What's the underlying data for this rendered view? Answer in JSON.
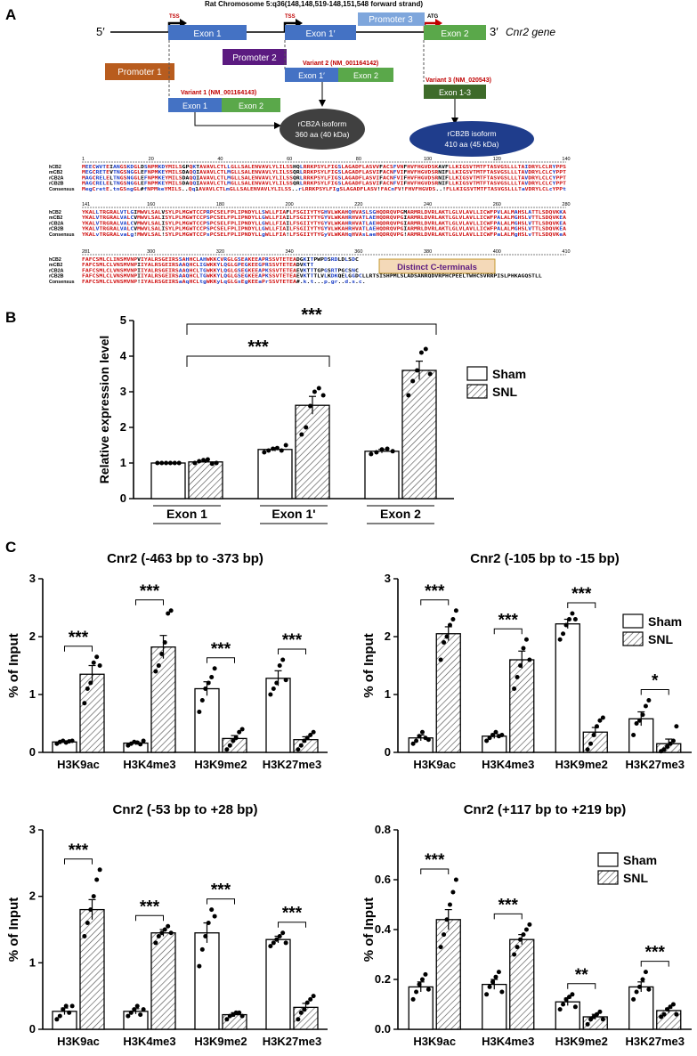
{
  "panel_labels": {
    "a": "A",
    "b": "B",
    "c": "C"
  },
  "gene_diagram": {
    "title": "Rat Chromosome 5:q36(148,148,519-148,151,548 forward strand)",
    "five_prime": "5′",
    "three_prime": "3′",
    "gene_label": "Cnr2 gene",
    "tss1": "TSS",
    "tss2": "TSS",
    "atg": "ATG",
    "exon1": "Exon 1",
    "exon1p": "Exon 1′",
    "exon2": "Exon 2",
    "promoter1": "Promoter 1",
    "promoter2": "Promoter 2",
    "promoter3": "Promoter 3",
    "variant2_title": "Variant 2 (NM_001164142)",
    "variant2_exon_a": "Exon 1′",
    "variant2_exon_b": "Exon 2",
    "variant3_title": "Variant 3 (NM_020543)",
    "variant3_exon": "Exon 1-3",
    "variant1_title": "Variant 1 (NM_001164143)",
    "variant1_exon_a": "Exon 1",
    "variant1_exon_b": "Exon 2",
    "isoform_a_line1": "rCB2A isoform",
    "isoform_a_line2": "360 aa (40 kDa)",
    "isoform_b_line1": "rCB2B isoform",
    "isoform_b_line2": "410 aa (45 kDa)",
    "colors": {
      "exon": "#4472c4",
      "exon2": "#5aa84a",
      "promoter1": "#b85c1e",
      "promoter2": "#5b1a80",
      "promoter3": "#7ea6dc",
      "variant3": "#3e6b2a",
      "isoform_a": "#404040",
      "isoform_b": "#1f3d8c",
      "title_red": "#c00000"
    }
  },
  "alignment": {
    "names": [
      "hCB2",
      "mCB2",
      "rCB2A",
      "rCB2B",
      "Consensus"
    ],
    "block1_ticks": [
      "1",
      "20",
      "40",
      "60",
      "80",
      "100",
      "120",
      "140"
    ],
    "block2_ticks": [
      "141",
      "160",
      "180",
      "200",
      "220",
      "240",
      "260",
      "280"
    ],
    "block3_ticks": [
      "281",
      "300",
      "320",
      "340",
      "360",
      "380",
      "400",
      "410"
    ],
    "block1": [
      "MEECWVTEIANGSKDGLDSNPMKDYMILSGPQKTAVAVLCTLLGLLSALENVAVLYLILSSHQLRRKPSYLFIGSLAGADFLASVVFACSFVNFHVFHGVDSKAVFLLKIGSVTMTFTASVGSLLLTAIDRYLCLRYPPS",
      "MEGCRETEVTNGSNGGLEFNPMKEYMILSDAQQIAVAVLCTLMGLLSALENVAVLYLILSSQRLRRKPSYLFIGSLAGADFLASVIFACNFVIFHVFHGVDSRNIFLLKIGSVTMTFTASVGSLLLTAVDRYLCLCYPPT",
      "MAGCRELELTNGSNGGLEFNPMKEYMILSDAQQIAVAVLCTLMGLLSALENVAVLYLILSSQRLRRKPSYLFIGSLAGADFLASVIFACNFVIFHVFHGVDSRNIFLLKIGSVTMTFTASVGSLLLTAVDRYLCLCYPPT",
      "MAGCRELELTNGSNGGLEFNPMKEYMILSDAQQIAVAVLCTLMGLLSALENVAVLYLILSSQRLRRKPSYLFIGSLAGADFLASVIFACNFVIFHVFHGVDSRNIFLLKIGSVTMTFTASVGSLLLTAVDRYLCLCYPPT",
      "MegCretE.tnGSngGL#fNPMkeYMILS..Qq1AVAVLCTLmGLLSALENVAVLYLILSS..rLRRKPSYLFIgSLAGADFLASV!FACnFV!FHVFHGVDS..!FLLKIGSVTMTFTASVGSLLLTaVDRYLCLcYPPt"
    ],
    "block2": [
      "YKALLTRGRALVTLGIMWVLSALVSYLPLMGWTCCPRPCSELFPLIPNDYLLSWLLFIAFLFSGIIYTYGHVLWKAHQHVASLSGHQDRQVPGMARMRLDVRLAKTLGLVLAVLLICWFPVLALMAHSLATTLSDQVKKA",
      "YKALVTRGRALVALCVMWVLSALISYLPLMGWTCCPSPCSELFPLIPNDYLLGWLLFIAILFSGIIYTYGYVLWKAHRHVATLAEHQDRQVPGIARMRLDVRLAKTLGLVLAVLLICWFPALALMGHSLVTTLSDQVKEA",
      "YKALVTRGRALVALCVMWVLSALISYLPLMGWTCCPSPCSELFPLIPNDYLLGWLLFIAILFSGIIYTYGYVLWKAHRHVATLAEHQDRQVPGIARMRLDVRLAKTLGLVLAVLLICWFPALALMGHSLVTTLSDQVKEA",
      "YKALVTRGRALVALCVMWVLSALISYLPLMGWTCCPSPCSELFPLIPNDYLLGWLLFIAILFSGIIYTYGYVLWKAHRHVATLAEHQDRQVPGIARMRLDVRLAKTLGLVLAVLLICWFPALALMGHSLVTTLSDQVKEA",
      "YKALvTRGRALvaLg!MWVLSAL!SYLPLMGWTCCPsPCSELFPLIPNDYLLgWLLFIA!LFSGIIYTYGyVLWKAHqHVAsLaeHQDRQVPG!ARMRLDVRLAKTLGLVLAVLLICWFPaLALMgHSLvTTLSDQVKeA"
    ],
    "block3": [
      "FAFCSMLCLINSMVNPVIYALRSGEIRSSAHHCLAHWKKCVRGLGSEAKEEAPRSSVTETEADGKITPWPDSRDLDLSDC",
      "FAFCSMLCLVNSMVNPIIYALRSGEIRSAAQHCLIGWKKYLQGLGPEGKEEGPRSSVTETEADVKTT",
      "FAFCSMLCLVNSMVNPIIYALRSGEIRSAAQHCLTGWKKYLQGLGSEGKEEAPKSSVTETEAEVKTTTGPGSRTPGCSNC",
      "FAFCSMLCLVNSMVNPIIYALRSGEIRSAAQHCLTGWKKYLQGLGSEGKEEAPKSSVTETEAEVKTTTLVLKDKQELGGDCLLRTSISHPMLSLADSANRQDVRPHCPEELTWHCSVRRPISLPHKAGQSTLL",
      "FAFCSMLCLVNSMVNP!IYALRSGEIRSaAqHCLtgWKKyLqGLGsEgKEEaPrSSVTETEA#.k.t...p.gr..d.s.c."
    ],
    "callout": "Distinct C-terminals"
  },
  "chart_data": [
    {
      "type": "bar",
      "panel": "B",
      "title": "",
      "xlabel": "",
      "ylabel": "Relative expression level",
      "ylim": [
        0,
        5
      ],
      "yticks": [
        "0",
        "1",
        "2",
        "3",
        "4",
        "5"
      ],
      "categories": [
        "Exon 1",
        "Exon 1'",
        "Exon 2"
      ],
      "series": [
        {
          "name": "Sham",
          "values": [
            1.0,
            1.38,
            1.33
          ],
          "errors": [
            0.0,
            0.05,
            0.05
          ],
          "points": [
            [
              1.0,
              1.0,
              1.0,
              1.0,
              1.0,
              1.0
            ],
            [
              1.3,
              1.35,
              1.4,
              1.42,
              1.35,
              1.5
            ],
            [
              1.25,
              1.3,
              1.38,
              1.4,
              1.33
            ]
          ]
        },
        {
          "name": "SNL",
          "values": [
            1.03,
            2.62,
            3.6
          ],
          "errors": [
            0.03,
            0.25,
            0.26
          ],
          "points": [
            [
              1.0,
              1.05,
              1.08,
              1.1,
              0.98,
              1.0
            ],
            [
              1.8,
              2.0,
              2.6,
              3.0,
              3.1,
              2.9
            ],
            [
              2.9,
              3.3,
              3.6,
              4.1,
              4.2,
              3.5
            ]
          ]
        }
      ],
      "significance": [
        {
          "label": "***",
          "from": "Exon 1",
          "to": "Exon 1'",
          "y": 4.0
        },
        {
          "label": "***",
          "from": "Exon 1",
          "to": "Exon 2",
          "y": 4.9
        }
      ],
      "legend": "right"
    },
    {
      "type": "bar",
      "panel": "C1",
      "title": "Cnr2 (-463 bp to -373 bp)",
      "ylabel": "% of Input",
      "ylim": [
        0,
        3
      ],
      "yticks": [
        "0",
        "1",
        "2",
        "3"
      ],
      "categories": [
        "H3K9ac",
        "H3K4me3",
        "H3K9me2",
        "H3K27me3"
      ],
      "series": [
        {
          "name": "Sham",
          "values": [
            0.18,
            0.16,
            1.1,
            1.28
          ],
          "errors": [
            0.02,
            0.03,
            0.12,
            0.13
          ],
          "points": [
            [
              0.15,
              0.18,
              0.2,
              0.17,
              0.19,
              0.2
            ],
            [
              0.12,
              0.15,
              0.18,
              0.17,
              0.14,
              0.2
            ],
            [
              0.7,
              0.9,
              1.1,
              1.2,
              1.3,
              1.45
            ],
            [
              1.0,
              1.1,
              1.2,
              1.5,
              1.6,
              1.25
            ]
          ]
        },
        {
          "name": "SNL",
          "values": [
            1.35,
            1.82,
            0.24,
            0.22
          ],
          "errors": [
            0.15,
            0.2,
            0.05,
            0.05
          ],
          "points": [
            [
              0.85,
              1.1,
              1.2,
              1.55,
              1.65,
              1.5
            ],
            [
              1.4,
              1.5,
              1.7,
              1.9,
              2.4,
              2.45
            ],
            [
              0.05,
              0.12,
              0.2,
              0.25,
              0.35,
              0.4
            ],
            [
              0.05,
              0.12,
              0.2,
              0.25,
              0.3,
              0.35
            ]
          ]
        }
      ],
      "significance": [
        "***",
        "***",
        "***",
        "***"
      ],
      "legend": "none"
    },
    {
      "type": "bar",
      "panel": "C2",
      "title": "Cnr2 (-105 bp to -15 bp)",
      "ylabel": "% of Input",
      "ylim": [
        0,
        3
      ],
      "yticks": [
        "0",
        "1",
        "2",
        "3"
      ],
      "categories": [
        "H3K9ac",
        "H3K4me3",
        "H3K9me2",
        "H3K27me3"
      ],
      "series": [
        {
          "name": "Sham",
          "values": [
            0.25,
            0.28,
            2.22,
            0.58
          ],
          "errors": [
            0.05,
            0.04,
            0.08,
            0.12
          ],
          "points": [
            [
              0.15,
              0.2,
              0.28,
              0.35,
              0.25,
              0.22
            ],
            [
              0.2,
              0.25,
              0.3,
              0.35,
              0.28,
              0.3
            ],
            [
              1.95,
              2.05,
              2.2,
              2.3,
              2.4,
              2.3
            ],
            [
              0.3,
              0.5,
              0.55,
              0.65,
              0.8,
              0.9
            ]
          ]
        },
        {
          "name": "SNL",
          "values": [
            2.05,
            1.6,
            0.35,
            0.15
          ],
          "errors": [
            0.12,
            0.15,
            0.08,
            0.08
          ],
          "points": [
            [
              1.6,
              1.9,
              2.0,
              2.2,
              2.3,
              2.45
            ],
            [
              1.1,
              1.3,
              1.5,
              1.8,
              1.95,
              1.6
            ],
            [
              0.05,
              0.15,
              0.3,
              0.45,
              0.55,
              0.6
            ],
            [
              0.02,
              0.05,
              0.1,
              0.15,
              0.2,
              0.45
            ]
          ]
        }
      ],
      "significance": [
        "***",
        "***",
        "***",
        "*"
      ],
      "legend": "right"
    },
    {
      "type": "bar",
      "panel": "C3",
      "title": "Cnr2 (-53 bp to +28 bp)",
      "ylabel": "% of Input",
      "ylim": [
        0,
        3
      ],
      "yticks": [
        "0",
        "1",
        "2",
        "3"
      ],
      "categories": [
        "H3K9ac",
        "H3K4me3",
        "H3K9me2",
        "H3K27me3"
      ],
      "series": [
        {
          "name": "Sham",
          "values": [
            0.27,
            0.27,
            1.45,
            1.35
          ],
          "errors": [
            0.05,
            0.04,
            0.15,
            0.05
          ],
          "points": [
            [
              0.15,
              0.2,
              0.3,
              0.35,
              0.25,
              0.35
            ],
            [
              0.2,
              0.25,
              0.3,
              0.35,
              0.22,
              0.3
            ],
            [
              0.95,
              1.2,
              1.4,
              1.6,
              1.8,
              1.7
            ],
            [
              1.25,
              1.3,
              1.35,
              1.4,
              1.45,
              1.3
            ]
          ]
        },
        {
          "name": "SNL",
          "values": [
            1.8,
            1.45,
            0.22,
            0.33
          ],
          "errors": [
            0.15,
            0.05,
            0.03,
            0.06
          ],
          "points": [
            [
              1.4,
              1.6,
              1.8,
              2.0,
              2.25,
              2.4
            ],
            [
              1.3,
              1.4,
              1.45,
              1.5,
              1.55,
              1.45
            ],
            [
              0.15,
              0.2,
              0.22,
              0.25,
              0.25,
              0.2
            ],
            [
              0.15,
              0.25,
              0.3,
              0.4,
              0.45,
              0.5
            ]
          ]
        }
      ],
      "significance": [
        "***",
        "***",
        "***",
        "***"
      ],
      "legend": "none"
    },
    {
      "type": "bar",
      "panel": "C4",
      "title": "Cnr2 (+117 bp to +219 bp)",
      "ylabel": "% of Input",
      "ylim": [
        0,
        0.8
      ],
      "yticks": [
        "0.0",
        "0.2",
        "0.4",
        "0.6",
        "0.8"
      ],
      "categories": [
        "H3K9ac",
        "H3K4me3",
        "H3K9me2",
        "H3K27me3"
      ],
      "series": [
        {
          "name": "Sham",
          "values": [
            0.17,
            0.18,
            0.11,
            0.17
          ],
          "errors": [
            0.02,
            0.02,
            0.015,
            0.02
          ],
          "points": [
            [
              0.12,
              0.15,
              0.18,
              0.2,
              0.22,
              0.16
            ],
            [
              0.14,
              0.17,
              0.19,
              0.21,
              0.23,
              0.15
            ],
            [
              0.08,
              0.1,
              0.12,
              0.13,
              0.14,
              0.09
            ],
            [
              0.12,
              0.15,
              0.17,
              0.2,
              0.23,
              0.16
            ]
          ]
        },
        {
          "name": "SNL",
          "values": [
            0.44,
            0.36,
            0.05,
            0.075
          ],
          "errors": [
            0.04,
            0.02,
            0.01,
            0.01
          ],
          "points": [
            [
              0.33,
              0.38,
              0.44,
              0.5,
              0.55,
              0.6
            ],
            [
              0.3,
              0.33,
              0.36,
              0.38,
              0.4,
              0.42
            ],
            [
              0.02,
              0.04,
              0.05,
              0.06,
              0.07,
              0.04
            ],
            [
              0.05,
              0.06,
              0.08,
              0.09,
              0.1,
              0.06
            ]
          ]
        }
      ],
      "significance": [
        "***",
        "***",
        "**",
        "***"
      ],
      "legend": "right"
    }
  ],
  "legend_labels": {
    "sham": "Sham",
    "snl": "SNL"
  }
}
